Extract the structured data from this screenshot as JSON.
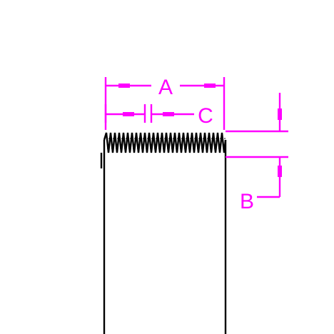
{
  "diagram": {
    "labels": {
      "a": "A",
      "b": "B",
      "c": "C"
    },
    "colors": {
      "dimension": "#ff00ff",
      "outline": "#000000",
      "background": "#ffffff"
    }
  }
}
